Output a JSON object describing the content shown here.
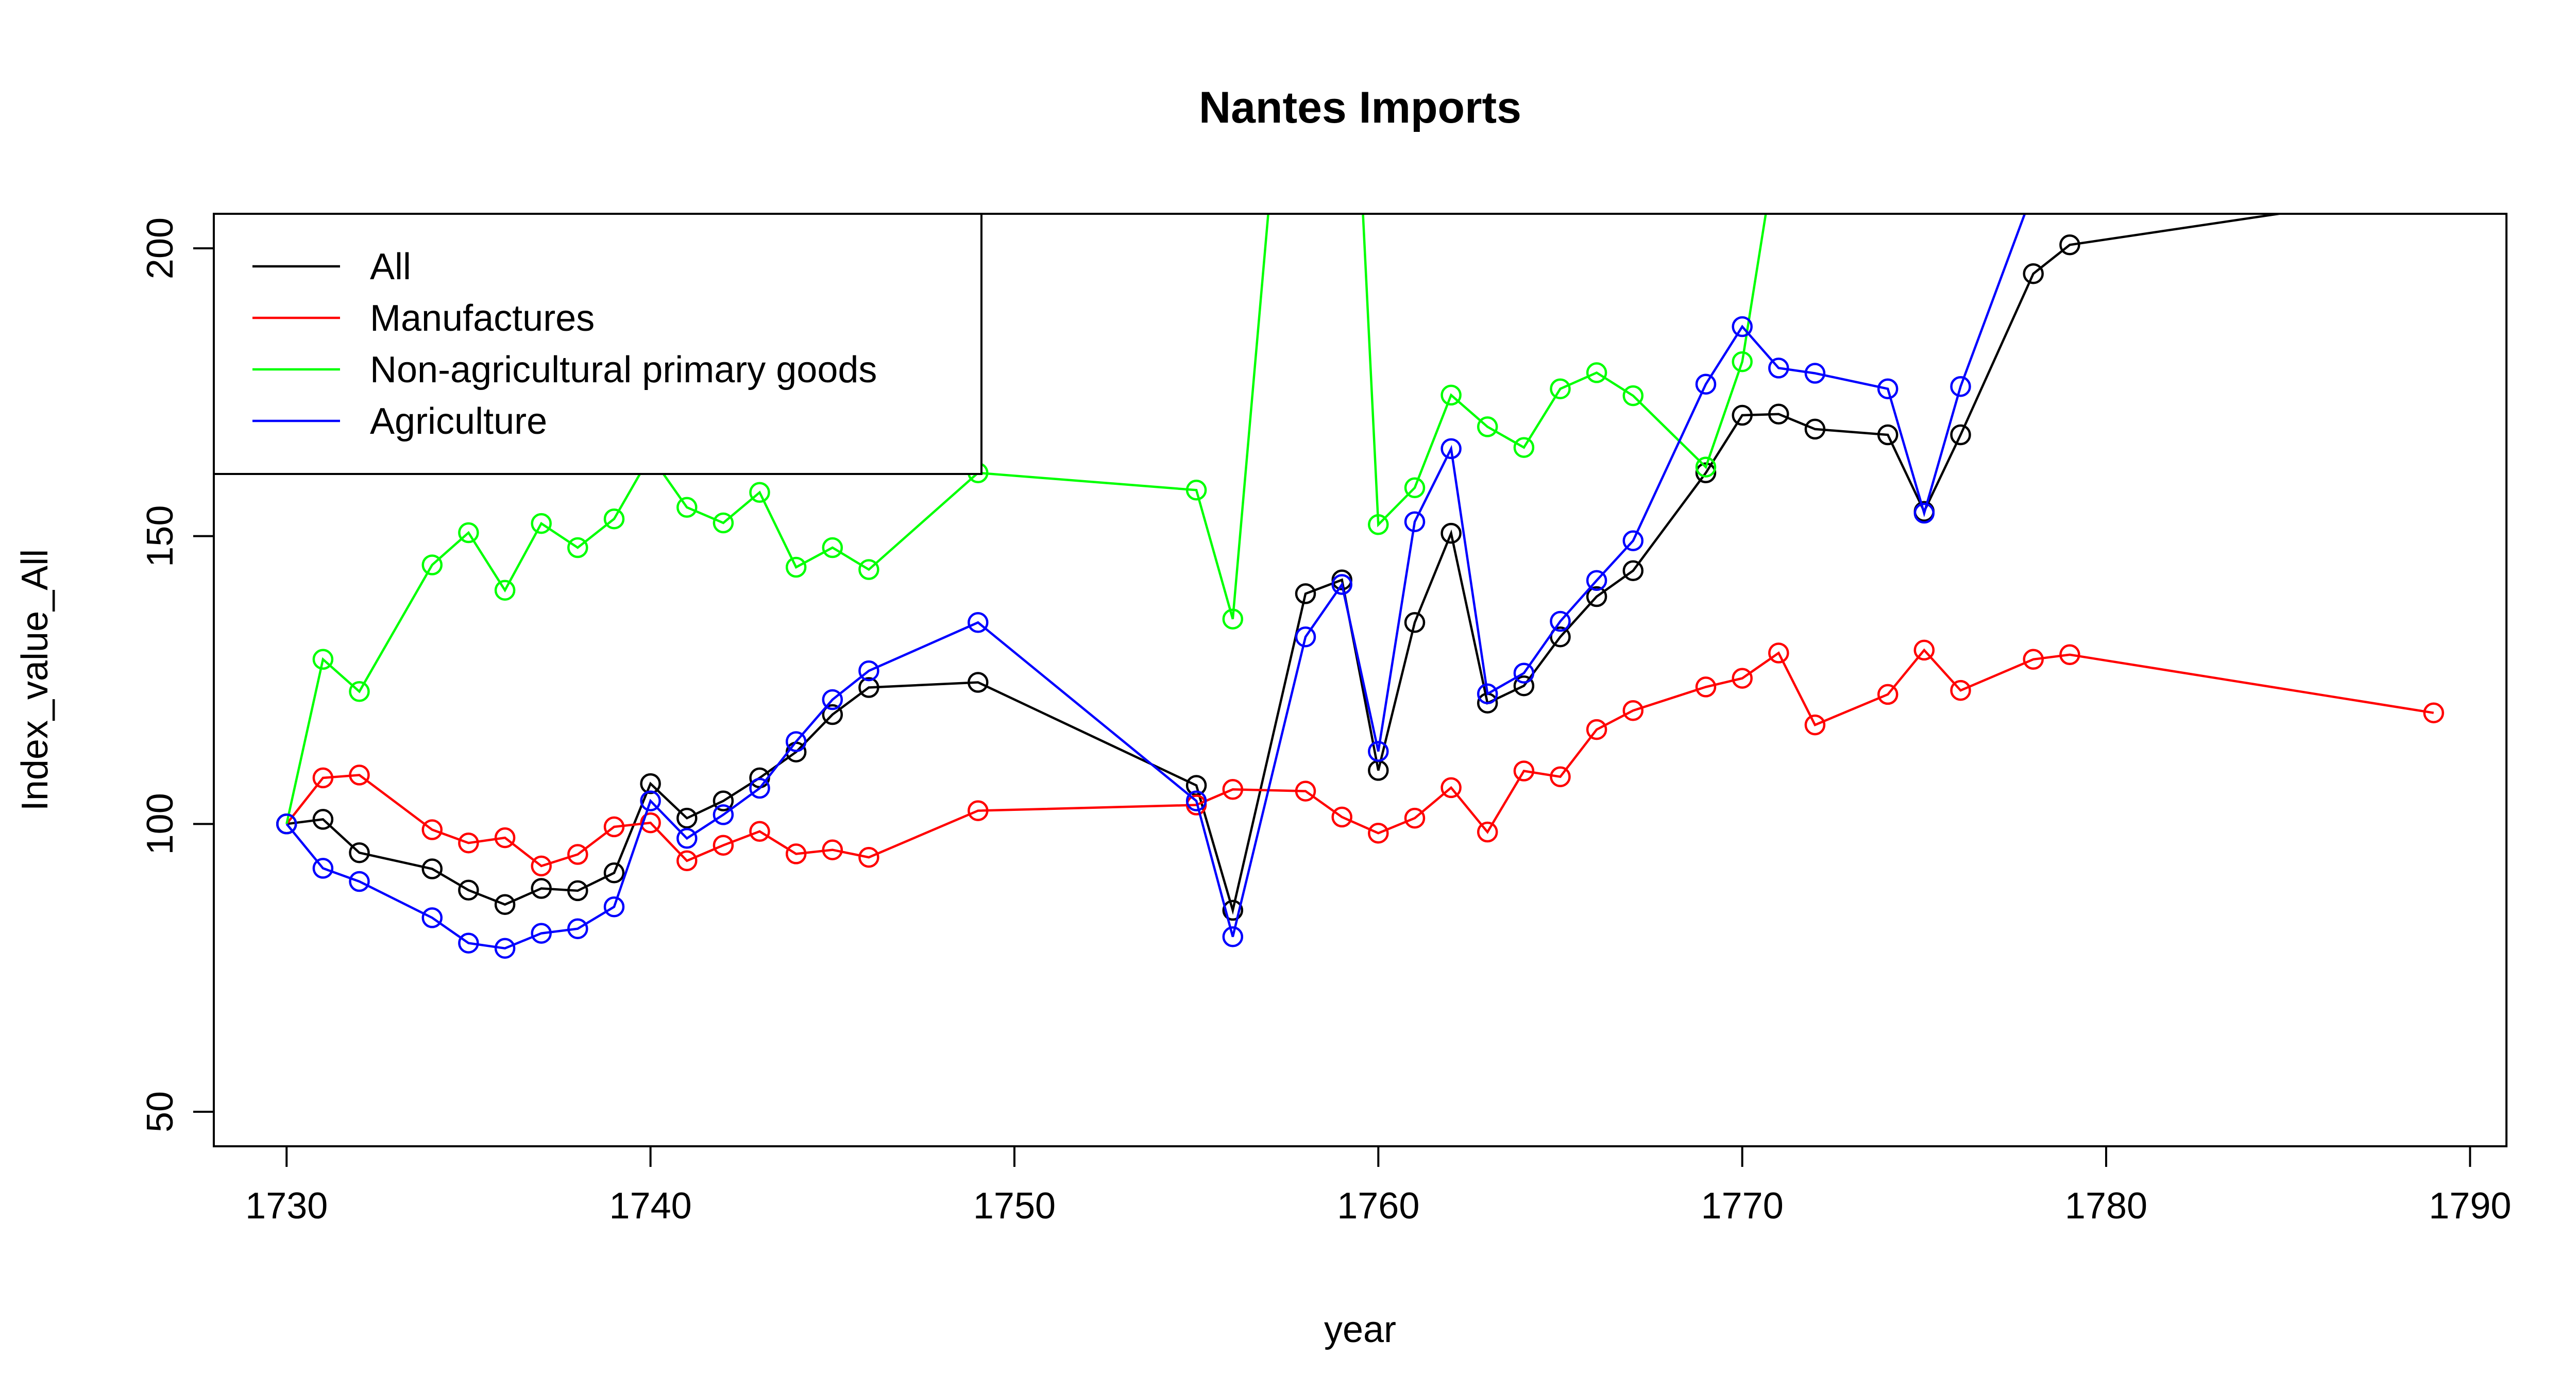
{
  "chart_data": {
    "type": "line",
    "title": "Nantes Imports",
    "xlabel": "year",
    "ylabel": "Index_value_All",
    "xlim": [
      1728,
      1791
    ],
    "ylim": [
      44,
      206
    ],
    "x_ticks": [
      "1730",
      "1740",
      "1750",
      "1760",
      "1770",
      "1780",
      "1790"
    ],
    "y_ticks": [
      "50",
      "100",
      "150",
      "200"
    ],
    "grid": false,
    "legend_position": "top-left",
    "series": [
      {
        "name": "All",
        "color": "#000000",
        "x": [
          1730,
          1731,
          1732,
          1734,
          1735,
          1736,
          1737,
          1738,
          1739,
          1740,
          1741,
          1742,
          1743,
          1744,
          1745,
          1746,
          1749,
          1755,
          1756,
          1758,
          1759,
          1760,
          1761,
          1762,
          1763,
          1764,
          1765,
          1766,
          1767,
          1769,
          1770,
          1771,
          1772,
          1774,
          1775,
          1776,
          1778,
          1779,
          1789
        ],
        "y": [
          100,
          100.8,
          95,
          92.2,
          88.5,
          86,
          88.8,
          88.4,
          91.5,
          107,
          101,
          104,
          108,
          112.5,
          119,
          123.7,
          124.6,
          106.7,
          85,
          140,
          142.4,
          109.3,
          135,
          150.5,
          121,
          124,
          132.5,
          139.5,
          144,
          161,
          171,
          171.2,
          168.6,
          167.6,
          154.3,
          167.6,
          195.6,
          200.6,
          210
        ]
      },
      {
        "name": "Manufactures",
        "color": "#ff0000",
        "x": [
          1730,
          1731,
          1732,
          1734,
          1735,
          1736,
          1737,
          1738,
          1739,
          1740,
          1741,
          1742,
          1743,
          1744,
          1745,
          1746,
          1749,
          1755,
          1756,
          1758,
          1759,
          1760,
          1761,
          1762,
          1763,
          1764,
          1765,
          1766,
          1767,
          1769,
          1770,
          1771,
          1772,
          1774,
          1775,
          1776,
          1778,
          1779,
          1789
        ],
        "y": [
          100,
          108,
          108.5,
          99,
          96.7,
          97.6,
          92.7,
          94.7,
          99.5,
          100.2,
          93.6,
          96.3,
          98.7,
          94.8,
          95.5,
          94.2,
          102.3,
          103.3,
          106,
          105.7,
          101.2,
          98.4,
          101,
          106.3,
          98.6,
          109.2,
          108.2,
          116.4,
          119.7,
          123.8,
          125.3,
          129.7,
          117.2,
          122.5,
          130.2,
          123.2,
          128.6,
          129.4,
          119.3
        ]
      },
      {
        "name": "Non-agricultural primary goods",
        "color": "#00ff00",
        "x": [
          1730,
          1731,
          1732,
          1734,
          1735,
          1736,
          1737,
          1738,
          1739,
          1740,
          1741,
          1742,
          1743,
          1744,
          1745,
          1746,
          1749,
          1755,
          1756,
          1758,
          1759,
          1760,
          1761,
          1762,
          1763,
          1764,
          1765,
          1766,
          1767,
          1769,
          1770,
          1771
        ],
        "y": [
          100,
          128.6,
          123,
          145,
          150.6,
          140.6,
          152.2,
          148,
          153,
          164,
          155,
          152.3,
          157.6,
          144.6,
          148,
          144.2,
          161,
          158,
          135.6,
          280,
          280,
          152,
          158.4,
          174.5,
          169,
          165.4,
          175.6,
          178.4,
          174.4,
          162,
          180.3,
          220
        ]
      },
      {
        "name": "Agriculture",
        "color": "#0000ff",
        "x": [
          1730,
          1731,
          1732,
          1734,
          1735,
          1736,
          1737,
          1738,
          1739,
          1740,
          1741,
          1742,
          1743,
          1744,
          1745,
          1746,
          1749,
          1755,
          1756,
          1758,
          1759,
          1760,
          1761,
          1762,
          1763,
          1764,
          1765,
          1766,
          1767,
          1769,
          1770,
          1771,
          1772,
          1774,
          1775,
          1776,
          1778
        ],
        "y": [
          100,
          92.3,
          90,
          83.7,
          79.3,
          78.4,
          81,
          81.8,
          85.6,
          104,
          97.5,
          101.6,
          106.2,
          114.3,
          121.6,
          126.6,
          135,
          104,
          80.4,
          132.5,
          141.6,
          112.6,
          152.5,
          165.2,
          122.6,
          126.2,
          135.2,
          142.3,
          149.2,
          176.4,
          186.4,
          179.2,
          178.3,
          175.6,
          154,
          176,
          210
        ]
      }
    ]
  }
}
